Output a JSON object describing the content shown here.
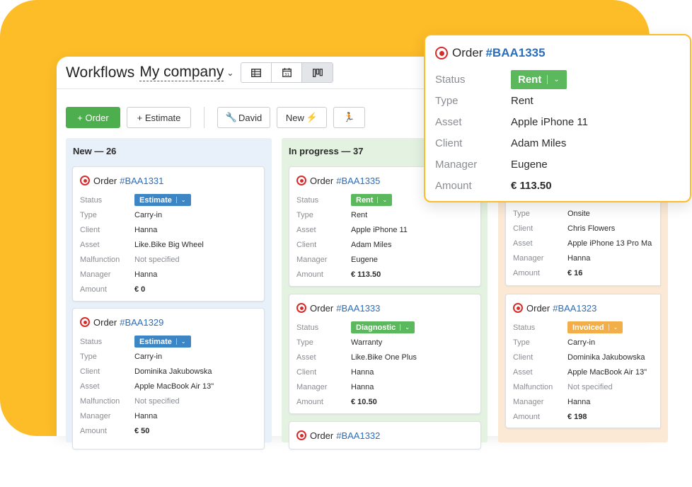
{
  "header": {
    "app_title": "Workflows",
    "company": "My company",
    "views": [
      "table-view-icon",
      "calendar-view-icon",
      "kanban-view-icon"
    ],
    "calendar_day": "31"
  },
  "toolbar": {
    "order_label": "+ Order",
    "estimate_label": "+ Estimate",
    "david_label": "David",
    "new_label": "New",
    "new_icon": "lightning-icon",
    "run_icon": "running-person-icon"
  },
  "columns": {
    "new": {
      "title": "New — 26",
      "cards": [
        {
          "order_word": "Order",
          "id": "#BAA1331",
          "status": "Estimate",
          "status_color": "#3d86c6",
          "rows": [
            {
              "label": "Type",
              "value": "Carry-in"
            },
            {
              "label": "Client",
              "value": "Hanna"
            },
            {
              "label": "Asset",
              "value": "Like.Bike Big Wheel"
            },
            {
              "label": "Malfunction",
              "value": "Not specified"
            },
            {
              "label": "Manager",
              "value": "Hanna"
            },
            {
              "label": "Amount",
              "value": "€ 0"
            }
          ]
        },
        {
          "order_word": "Order",
          "id": "#BAA1329",
          "status": "Estimate",
          "status_color": "#3d86c6",
          "rows": [
            {
              "label": "Type",
              "value": "Carry-in"
            },
            {
              "label": "Client",
              "value": "Dominika Jakubowska"
            },
            {
              "label": "Asset",
              "value": "Apple MacBook Air 13\""
            },
            {
              "label": "Malfunction",
              "value": "Not specified"
            },
            {
              "label": "Manager",
              "value": "Hanna"
            },
            {
              "label": "Amount",
              "value": "€ 50"
            }
          ]
        }
      ]
    },
    "in_progress": {
      "title": "In progress — 37",
      "cards": [
        {
          "order_word": "Order",
          "id": "#BAA1335",
          "status": "Rent",
          "status_color": "#5cb85c",
          "rows": [
            {
              "label": "Type",
              "value": "Rent"
            },
            {
              "label": "Asset",
              "value": "Apple iPhone 11"
            },
            {
              "label": "Client",
              "value": "Adam Miles"
            },
            {
              "label": "Manager",
              "value": "Eugene"
            },
            {
              "label": "Amount",
              "value": "€ 113.50"
            }
          ]
        },
        {
          "order_word": "Order",
          "id": "#BAA1333",
          "status": "Diagnostic",
          "status_color": "#5cb85c",
          "rows": [
            {
              "label": "Type",
              "value": "Warranty"
            },
            {
              "label": "Asset",
              "value": "Like.Bike One Plus"
            },
            {
              "label": "Client",
              "value": "Hanna"
            },
            {
              "label": "Manager",
              "value": "Hanna"
            },
            {
              "label": "Amount",
              "value": "€ 10.50"
            }
          ]
        },
        {
          "order_word": "Order",
          "id": "#BAA1332"
        }
      ]
    },
    "third": {
      "cards": [
        {
          "rows": [
            {
              "label": "Type",
              "value": "Onsite"
            },
            {
              "label": "Client",
              "value": "Chris Flowers"
            },
            {
              "label": "Asset",
              "value": "Apple iPhone 13 Pro Ma"
            },
            {
              "label": "Manager",
              "value": "Hanna"
            },
            {
              "label": "Amount",
              "value": "€ 16"
            }
          ]
        },
        {
          "order_word": "Order",
          "id": "#BAA1323",
          "status": "Invoiced",
          "status_color": "#f2ae49",
          "rows": [
            {
              "label": "Type",
              "value": "Carry-in"
            },
            {
              "label": "Client",
              "value": "Dominika Jakubowska"
            },
            {
              "label": "Asset",
              "value": "Apple MacBook Air 13\""
            },
            {
              "label": "Malfunction",
              "value": "Not specified"
            },
            {
              "label": "Manager",
              "value": "Hanna"
            },
            {
              "label": "Amount",
              "value": "€ 198"
            }
          ]
        }
      ]
    }
  },
  "popup": {
    "order_word": "Order",
    "id": "#BAA1335",
    "status_label": "Status",
    "status": "Rent",
    "rows": [
      {
        "label": "Type",
        "value": "Rent"
      },
      {
        "label": "Asset",
        "value": "Apple iPhone 11"
      },
      {
        "label": "Client",
        "value": "Adam Miles"
      },
      {
        "label": "Manager",
        "value": "Eugene"
      },
      {
        "label": "Amount",
        "value": "€ 113.50"
      }
    ]
  },
  "status_label": "Status",
  "colors": {
    "background": "#fdbd28",
    "primary_green": "#4cae4c",
    "link_blue": "#2a6ebd",
    "estimate_blue": "#3d86c6",
    "invoiced_orange": "#f2ae49"
  }
}
